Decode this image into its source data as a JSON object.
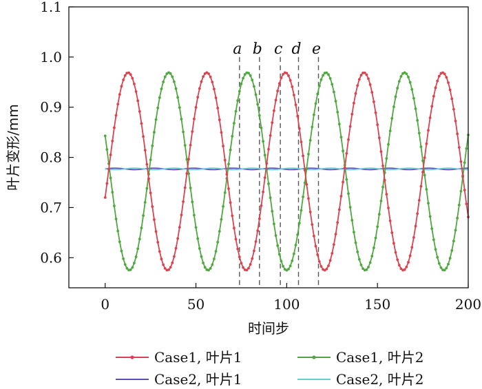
{
  "chart_data": {
    "type": "line",
    "title": "",
    "xlabel": "时间步",
    "ylabel": "叶片变形/mm",
    "xlim": [
      -20,
      200
    ],
    "ylim": [
      0.54,
      1.1
    ],
    "xticks": [
      0,
      50,
      100,
      150,
      200
    ],
    "yticks": [
      0.6,
      0.7,
      0.8,
      0.9,
      1.0,
      1.1
    ],
    "xtick_labels": [
      "0",
      "50",
      "100",
      "150",
      "200"
    ],
    "ytick_labels": [
      "0.6",
      "0.7",
      "0.8",
      "0.9",
      "1.0",
      "1.1"
    ],
    "grid": false,
    "legend_position": "bottom",
    "series": [
      {
        "name": "Case1, 叶片1",
        "color": "#d9434f",
        "marker": "dot",
        "model": {
          "type": "sinusoid",
          "mean": 0.772,
          "amplitude": 0.197,
          "period": 43.3,
          "phase_at_x0": 0.72,
          "x_start": 0,
          "x_end": 200,
          "samples": 201
        }
      },
      {
        "name": "Case1, 叶片2",
        "color": "#4fa83d",
        "marker": "dot",
        "model": {
          "type": "sinusoid",
          "mean": 0.772,
          "amplitude": 0.197,
          "period": 43.3,
          "phase_at_x0": 0.843,
          "x_start": 0,
          "x_end": 200,
          "samples": 201
        }
      },
      {
        "name": "Case2, 叶片1",
        "color": "#5b4fb0",
        "marker": "none",
        "model": {
          "type": "sinusoid",
          "mean": 0.777,
          "amplitude": 0.0015,
          "period": 21.6,
          "phase_at_x0": 0.777,
          "x_start": 0,
          "x_end": 200,
          "samples": 201
        }
      },
      {
        "name": "Case2, 叶片2",
        "color": "#6ec8d8",
        "marker": "none",
        "model": {
          "type": "sinusoid",
          "mean": 0.777,
          "amplitude": 0.0015,
          "period": 21.6,
          "phase_at_x0": 0.777,
          "x_start": 0,
          "x_end": 200,
          "samples": 201,
          "inverted": true
        }
      }
    ],
    "markers": [
      {
        "label": "a",
        "x": 74
      },
      {
        "label": "b",
        "x": 85
      },
      {
        "label": "c",
        "x": 96.5
      },
      {
        "label": "d",
        "x": 106.5
      },
      {
        "label": "e",
        "x": 117.5
      }
    ]
  }
}
